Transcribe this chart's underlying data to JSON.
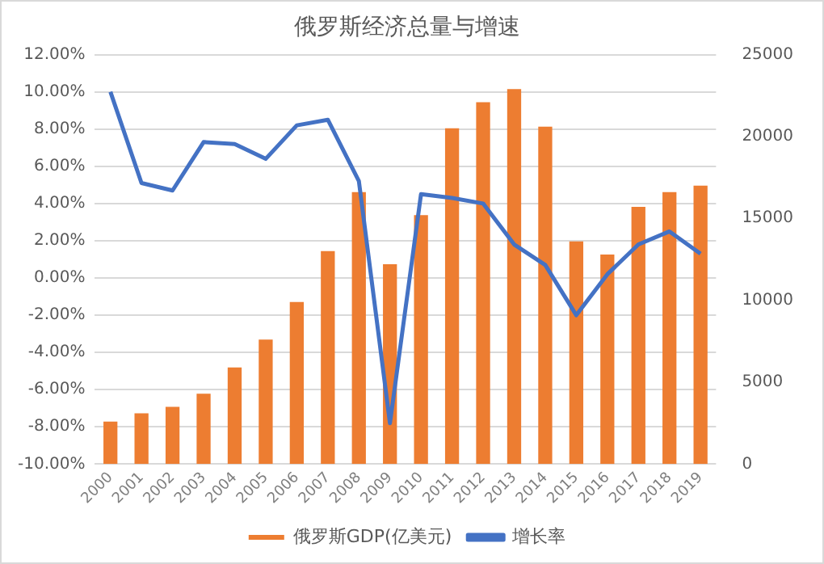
{
  "chart_data": {
    "type": "bar",
    "title": "俄罗斯经济总量与增速",
    "categories": [
      "2000",
      "2001",
      "2002",
      "2003",
      "2004",
      "2005",
      "2006",
      "2007",
      "2008",
      "2009",
      "2010",
      "2011",
      "2012",
      "2013",
      "2014",
      "2015",
      "2016",
      "2017",
      "2018",
      "2019"
    ],
    "series": [
      {
        "name": "俄罗斯GDP(亿美元)",
        "axis": "y2",
        "color": "#ed7d31",
        "values": [
          2600,
          3100,
          3500,
          4300,
          5900,
          7600,
          9900,
          13000,
          16600,
          12200,
          15200,
          20500,
          22100,
          22900,
          20600,
          13600,
          12800,
          15700,
          16600,
          17000
        ]
      },
      {
        "name": "增长率",
        "type": "line",
        "axis": "y",
        "color": "#4472c4",
        "values": [
          10.0,
          5.1,
          4.7,
          7.3,
          7.2,
          6.4,
          8.2,
          8.5,
          5.2,
          -7.8,
          4.5,
          4.3,
          4.0,
          1.8,
          0.7,
          -2.0,
          0.2,
          1.8,
          2.5,
          1.3
        ]
      }
    ],
    "ylim": [
      -10,
      12
    ],
    "yticks": [
      {
        "value": -10,
        "label": "-10.00%"
      },
      {
        "value": -8,
        "label": "-8.00%"
      },
      {
        "value": -6,
        "label": "-6.00%"
      },
      {
        "value": -4,
        "label": "-4.00%"
      },
      {
        "value": -2,
        "label": "-2.00%"
      },
      {
        "value": 0,
        "label": "0.00%"
      },
      {
        "value": 2,
        "label": "2.00%"
      },
      {
        "value": 4,
        "label": "4.00%"
      },
      {
        "value": 6,
        "label": "6.00%"
      },
      {
        "value": 8,
        "label": "8.00%"
      },
      {
        "value": 10,
        "label": "10.00%"
      },
      {
        "value": 12,
        "label": "12.00%"
      }
    ],
    "y2lim": [
      0,
      25000
    ],
    "y2ticks": [
      0,
      5000,
      10000,
      15000,
      20000,
      25000
    ],
    "grid": "y",
    "legend": "bottom",
    "marker": "none",
    "line_style": "solid"
  }
}
